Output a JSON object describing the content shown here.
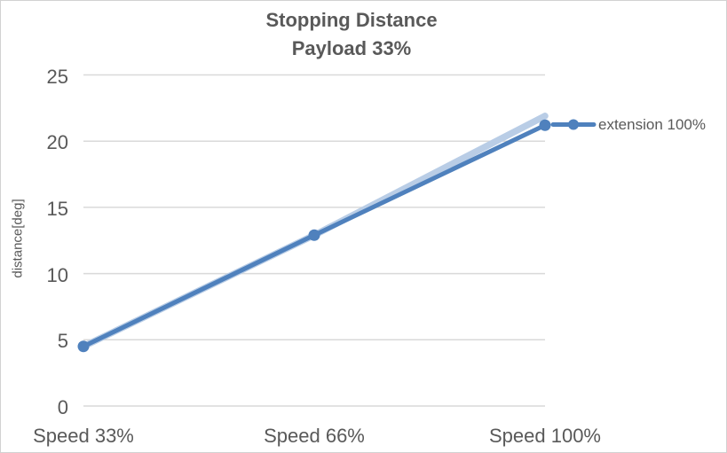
{
  "window": {
    "background": "#ffffff",
    "border_color": "#d2d2d2",
    "text_color": "#595959"
  },
  "chart_data": {
    "type": "line",
    "title": "Stopping Distance",
    "subtitle": "Payload 33%",
    "xlabel": "",
    "ylabel": "distance[deg]",
    "categories": [
      "Speed 33%",
      "Speed 66%",
      "Speed 100%"
    ],
    "series": [
      {
        "name": "",
        "values": [
          4.5,
          12.9,
          21.9
        ],
        "color": "#b9cde6",
        "line_width": 7.5,
        "markers": false,
        "in_legend": false
      },
      {
        "name": "extension 100%",
        "values": [
          4.5,
          12.9,
          21.2
        ],
        "color": "#4f81bd",
        "line_width": 5,
        "markers": true,
        "marker_radius": 6.5,
        "in_legend": true
      }
    ],
    "ylim": [
      0,
      25
    ],
    "yticks": [
      0,
      5,
      10,
      15,
      20,
      25
    ],
    "grid": "horizontal",
    "gridline_color": "#d9d9d9",
    "legend_position": "right",
    "legend_entries": [
      "extension 100%"
    ]
  }
}
